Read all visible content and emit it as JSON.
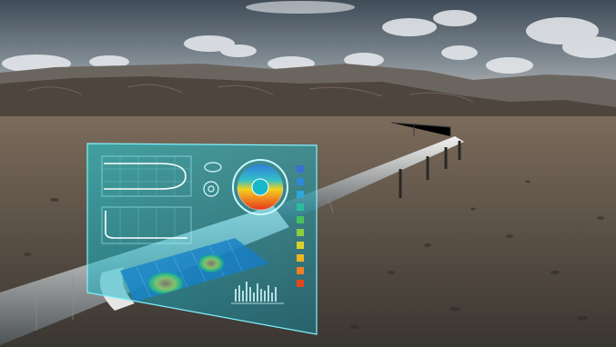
{
  "scene": {
    "palette": {
      "sky_top": "#3f4b57",
      "sky_mid": "#7f8a93",
      "sky_horizon": "#c9c6bf",
      "cloud": "#e9ecef",
      "mountain_far": "#6b6560",
      "mountain_near": "#4e453d",
      "ground_far": "#7b6b5b",
      "ground_near": "#3a3631",
      "pipe_light": "#d8d8d6",
      "pipe_dark": "#5f6466",
      "holo_fill": "#19c9d6",
      "holo_stroke": "#7ff2ff",
      "heat_blue": "#1d56c9",
      "heat_green": "#3bc14a",
      "heat_yellow": "#f2d21b",
      "heat_red": "#e5371b"
    },
    "legend_swatches": [
      "#3a6fd1",
      "#2f89d8",
      "#2ea6d6",
      "#2bbd9e",
      "#48c25a",
      "#8dcd3d",
      "#d9d22a",
      "#f0b323",
      "#ee7f23",
      "#e5461e"
    ]
  }
}
